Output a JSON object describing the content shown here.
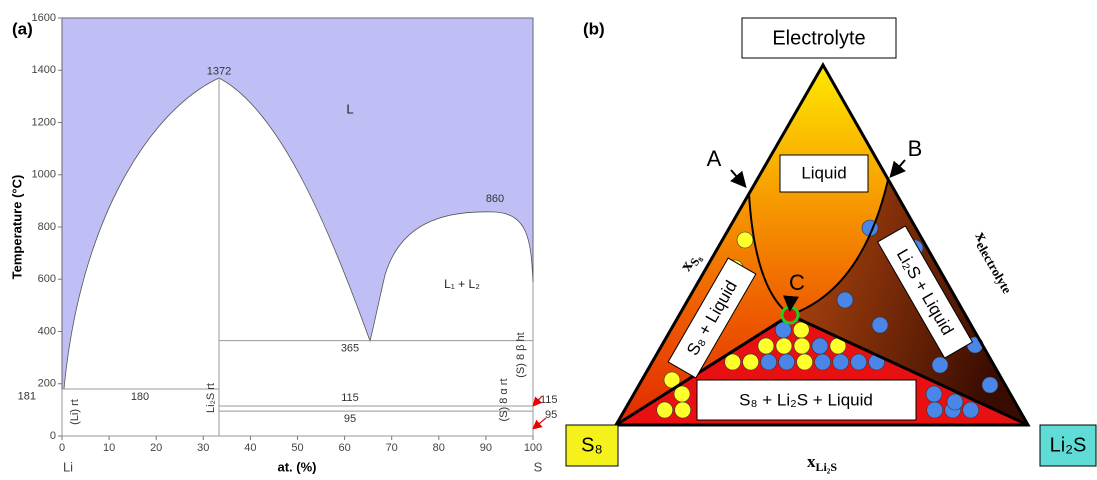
{
  "panel_a": {
    "label": "(a)",
    "y_axis_title": "Temperature (°C)",
    "x_axis_title": "at. (%)",
    "left_element": "Li",
    "right_element": "S",
    "xticks": [
      0,
      10,
      20,
      30,
      40,
      50,
      60,
      70,
      80,
      90,
      100
    ],
    "yticks": [
      0,
      200,
      400,
      600,
      800,
      1000,
      1200,
      1400,
      1600
    ],
    "temperatures": {
      "peak": 1372,
      "dome": 860,
      "eutectic": 365,
      "li_melt": 180,
      "li_melt_left": 181,
      "s_transition": 115,
      "s_transition_right": 115,
      "s_alpha": 95,
      "s_alpha_right": 95
    },
    "phases": {
      "liquid": "L",
      "miscibility_gap": "L₁ + L₂",
      "li_rt": "(Li) rt",
      "li2s_rt": "Li₂S rt",
      "s_alpha": "(S) 8 α rt",
      "s_beta": "(S) 8 β ht"
    }
  },
  "panel_b": {
    "label": "(b)",
    "top_box": "Electrolyte",
    "left_box": "S₈",
    "right_box": "Li₂S",
    "regions": {
      "liquid": "Liquid",
      "s8_liquid": "S₈ + Liquid",
      "li2s_liquid": "Li₂S + Liquid",
      "three_phase": "S₈ + Li₂S + Liquid"
    },
    "points": {
      "a": "A",
      "b": "B",
      "c": "C"
    },
    "axes": {
      "s8": {
        "base": "x",
        "sub": "S₈"
      },
      "electrolyte": {
        "base": "x",
        "sub": "electrolyte"
      },
      "li2s": {
        "base": "x",
        "sub": "Li₂S"
      }
    }
  }
}
